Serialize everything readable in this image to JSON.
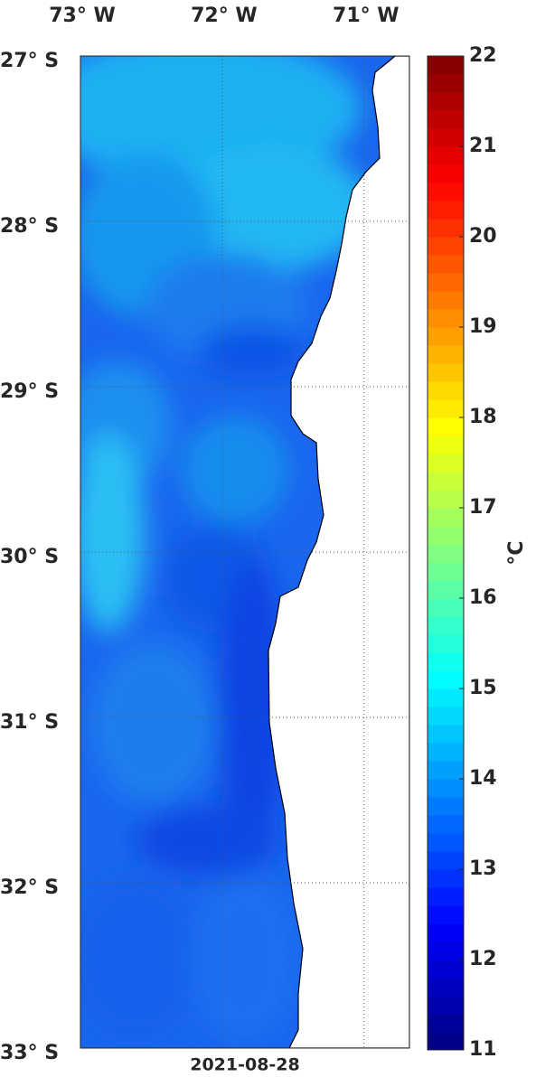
{
  "chart_data": {
    "type": "map",
    "xlim": [
      -73,
      -70.68
    ],
    "ylim": [
      -33,
      -27
    ],
    "xticks": [
      {
        "value": -73,
        "label": "73° W"
      },
      {
        "value": -72,
        "label": "72° W"
      },
      {
        "value": -71,
        "label": "71° W"
      }
    ],
    "yticks": [
      {
        "value": -27,
        "label": "27° S"
      },
      {
        "value": -28,
        "label": "28° S"
      },
      {
        "value": -29,
        "label": "29° S"
      },
      {
        "value": -30,
        "label": "30° S"
      },
      {
        "value": -31,
        "label": "31° S"
      },
      {
        "value": -32,
        "label": "32° S"
      },
      {
        "value": -33,
        "label": "33° S"
      }
    ],
    "grid": true,
    "date": "2021-08-28",
    "colorbar": {
      "label": "°C",
      "lim": [
        11,
        22
      ],
      "ticks": [
        11,
        12,
        13,
        14,
        15,
        16,
        17,
        18,
        19,
        20,
        21,
        22
      ]
    }
  }
}
